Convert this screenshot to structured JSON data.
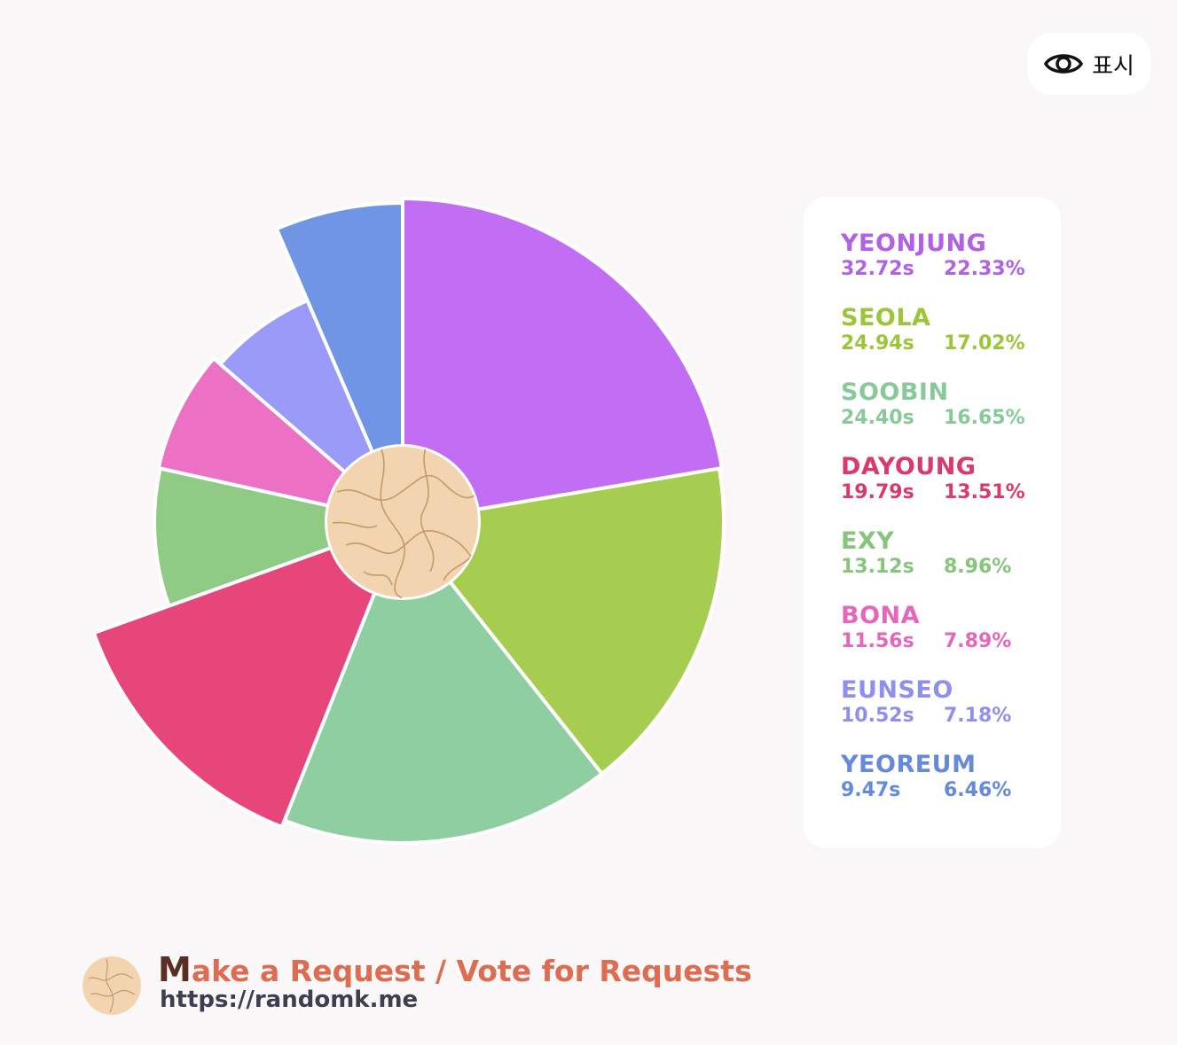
{
  "toolbar": {
    "show_label": "표시",
    "show_icon": "eye-icon"
  },
  "chart_data": {
    "type": "pie",
    "title": "",
    "center_image": "cookie-logo-icon",
    "series": [
      {
        "name": "YEONJUNG",
        "seconds": "32.72s",
        "percent": "22.33%",
        "value": 22.33,
        "color": "#c16ef4"
      },
      {
        "name": "SEOLA",
        "seconds": "24.94s",
        "percent": "17.02%",
        "value": 17.02,
        "color": "#a7cd50"
      },
      {
        "name": "SOOBIN",
        "seconds": "24.40s",
        "percent": "16.65%",
        "value": 16.65,
        "color": "#8fcea0"
      },
      {
        "name": "DAYOUNG",
        "seconds": "19.79s",
        "percent": "13.51%",
        "value": 13.51,
        "color": "#e6467a"
      },
      {
        "name": "EXY",
        "seconds": "13.12s",
        "percent": "8.96%",
        "value": 8.96,
        "color": "#8fcb84"
      },
      {
        "name": "BONA",
        "seconds": "11.56s",
        "percent": "7.89%",
        "value": 7.89,
        "color": "#ec70c4"
      },
      {
        "name": "EUNSEO",
        "seconds": "10.52s",
        "percent": "7.18%",
        "value": 7.18,
        "color": "#9a9af8"
      },
      {
        "name": "YEOREUM",
        "seconds": "9.47s",
        "percent": "6.46%",
        "value": 6.46,
        "color": "#6f95e4"
      }
    ],
    "legend_position": "right"
  },
  "legend_text_colors": [
    "#b260e6",
    "#9cc53a",
    "#88c99a",
    "#d93a6a",
    "#86c57b",
    "#e467bd",
    "#8f8fee",
    "#6589dc"
  ],
  "footer": {
    "logo_icon": "cookie-logo-icon",
    "title_first": "M",
    "title_rest": "ake a Request / Vote for Requests",
    "url": "https://randomk.me"
  }
}
